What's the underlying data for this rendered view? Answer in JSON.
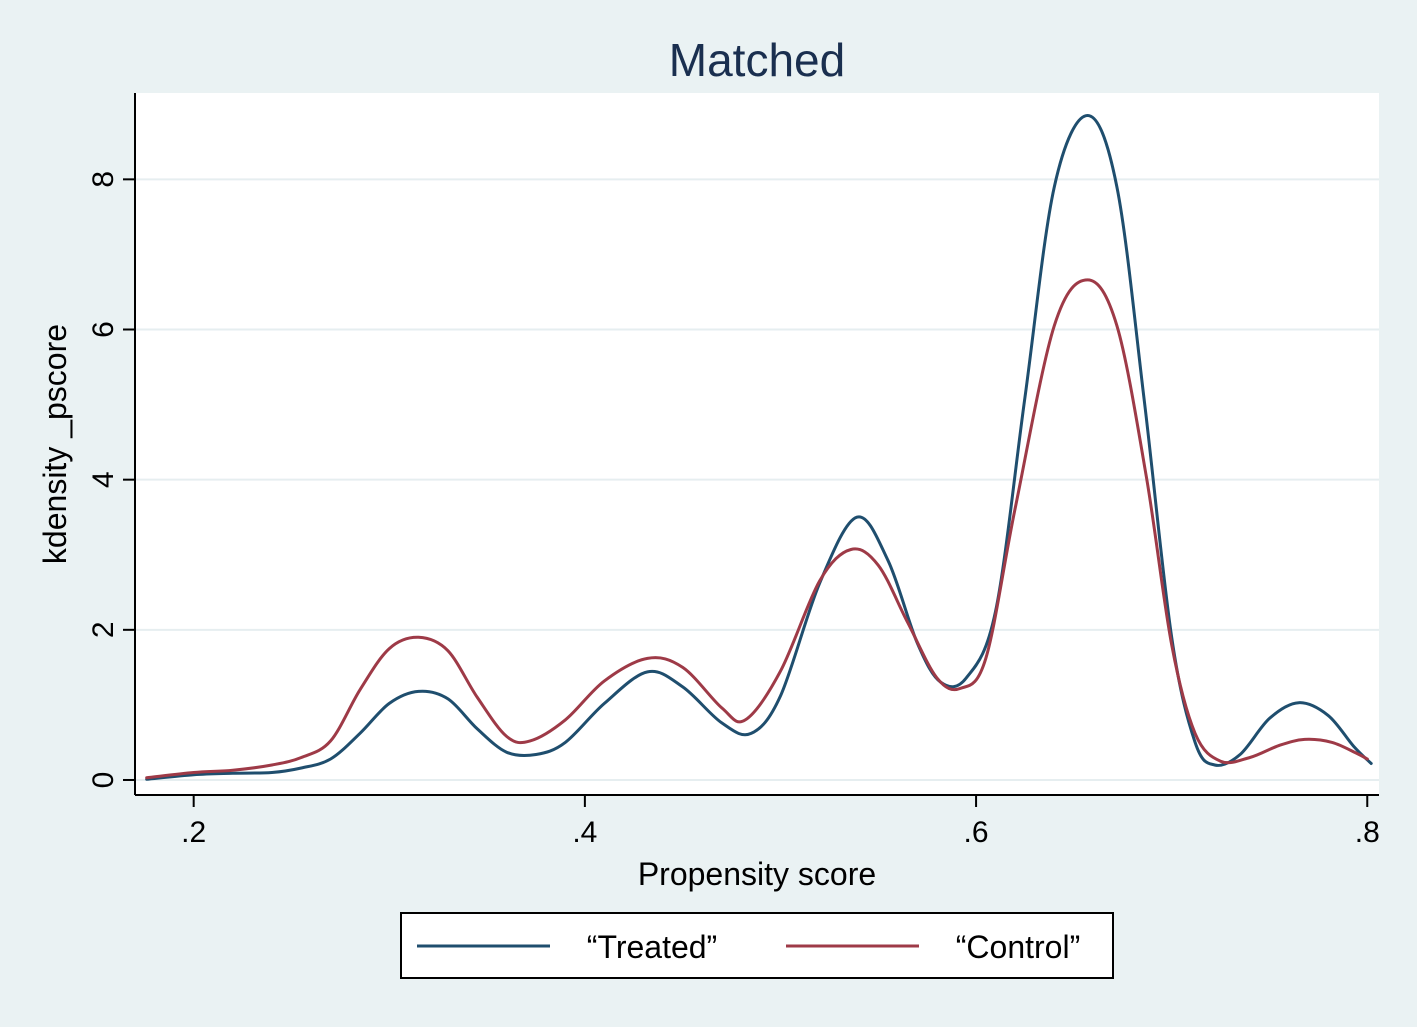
{
  "chart_data": {
    "type": "line",
    "title": "Matched",
    "xlabel": "Propensity score",
    "ylabel": "kdensity _pscore",
    "xlim": [
      0.17,
      0.806
    ],
    "ylim": [
      -0.2,
      9.15
    ],
    "x_ticks": [
      {
        "value": 0.2,
        "label": ".2"
      },
      {
        "value": 0.4,
        "label": ".4"
      },
      {
        "value": 0.6,
        "label": ".6"
      },
      {
        "value": 0.8,
        "label": ".8"
      }
    ],
    "y_ticks": [
      {
        "value": 0,
        "label": "0"
      },
      {
        "value": 2,
        "label": "2"
      },
      {
        "value": 4,
        "label": "4"
      },
      {
        "value": 6,
        "label": "6"
      },
      {
        "value": 8,
        "label": "8"
      }
    ],
    "grid": true,
    "legend_position": "bottom",
    "series": [
      {
        "name": "“Treated”",
        "color": "#1f4e6e",
        "points": [
          [
            0.176,
            0.01
          ],
          [
            0.2,
            0.07
          ],
          [
            0.22,
            0.09
          ],
          [
            0.24,
            0.1
          ],
          [
            0.255,
            0.16
          ],
          [
            0.27,
            0.28
          ],
          [
            0.285,
            0.62
          ],
          [
            0.3,
            1.02
          ],
          [
            0.315,
            1.18
          ],
          [
            0.33,
            1.08
          ],
          [
            0.345,
            0.68
          ],
          [
            0.36,
            0.37
          ],
          [
            0.375,
            0.34
          ],
          [
            0.39,
            0.5
          ],
          [
            0.41,
            1.02
          ],
          [
            0.432,
            1.44
          ],
          [
            0.45,
            1.24
          ],
          [
            0.47,
            0.76
          ],
          [
            0.485,
            0.62
          ],
          [
            0.5,
            1.12
          ],
          [
            0.52,
            2.62
          ],
          [
            0.539,
            3.5
          ],
          [
            0.555,
            2.92
          ],
          [
            0.57,
            1.82
          ],
          [
            0.582,
            1.3
          ],
          [
            0.595,
            1.36
          ],
          [
            0.61,
            2.25
          ],
          [
            0.625,
            5.1
          ],
          [
            0.64,
            7.9
          ],
          [
            0.657,
            8.85
          ],
          [
            0.672,
            7.9
          ],
          [
            0.686,
            5.05
          ],
          [
            0.7,
            1.9
          ],
          [
            0.712,
            0.5
          ],
          [
            0.722,
            0.2
          ],
          [
            0.735,
            0.34
          ],
          [
            0.75,
            0.82
          ],
          [
            0.765,
            1.03
          ],
          [
            0.78,
            0.86
          ],
          [
            0.793,
            0.45
          ],
          [
            0.802,
            0.22
          ]
        ]
      },
      {
        "name": "“Control”",
        "color": "#9e3a47",
        "points": [
          [
            0.176,
            0.03
          ],
          [
            0.2,
            0.1
          ],
          [
            0.22,
            0.13
          ],
          [
            0.24,
            0.2
          ],
          [
            0.255,
            0.3
          ],
          [
            0.27,
            0.52
          ],
          [
            0.285,
            1.2
          ],
          [
            0.3,
            1.75
          ],
          [
            0.315,
            1.9
          ],
          [
            0.33,
            1.72
          ],
          [
            0.345,
            1.1
          ],
          [
            0.36,
            0.58
          ],
          [
            0.372,
            0.52
          ],
          [
            0.39,
            0.8
          ],
          [
            0.41,
            1.32
          ],
          [
            0.432,
            1.62
          ],
          [
            0.45,
            1.5
          ],
          [
            0.47,
            0.96
          ],
          [
            0.482,
            0.8
          ],
          [
            0.5,
            1.45
          ],
          [
            0.52,
            2.65
          ],
          [
            0.536,
            3.07
          ],
          [
            0.55,
            2.86
          ],
          [
            0.565,
            2.1
          ],
          [
            0.58,
            1.36
          ],
          [
            0.592,
            1.22
          ],
          [
            0.605,
            1.62
          ],
          [
            0.62,
            3.62
          ],
          [
            0.64,
            6.05
          ],
          [
            0.657,
            6.66
          ],
          [
            0.672,
            6.05
          ],
          [
            0.687,
            4.05
          ],
          [
            0.7,
            1.8
          ],
          [
            0.712,
            0.62
          ],
          [
            0.725,
            0.25
          ],
          [
            0.74,
            0.3
          ],
          [
            0.755,
            0.46
          ],
          [
            0.768,
            0.54
          ],
          [
            0.782,
            0.5
          ],
          [
            0.795,
            0.35
          ],
          [
            0.8,
            0.28
          ]
        ]
      }
    ]
  }
}
